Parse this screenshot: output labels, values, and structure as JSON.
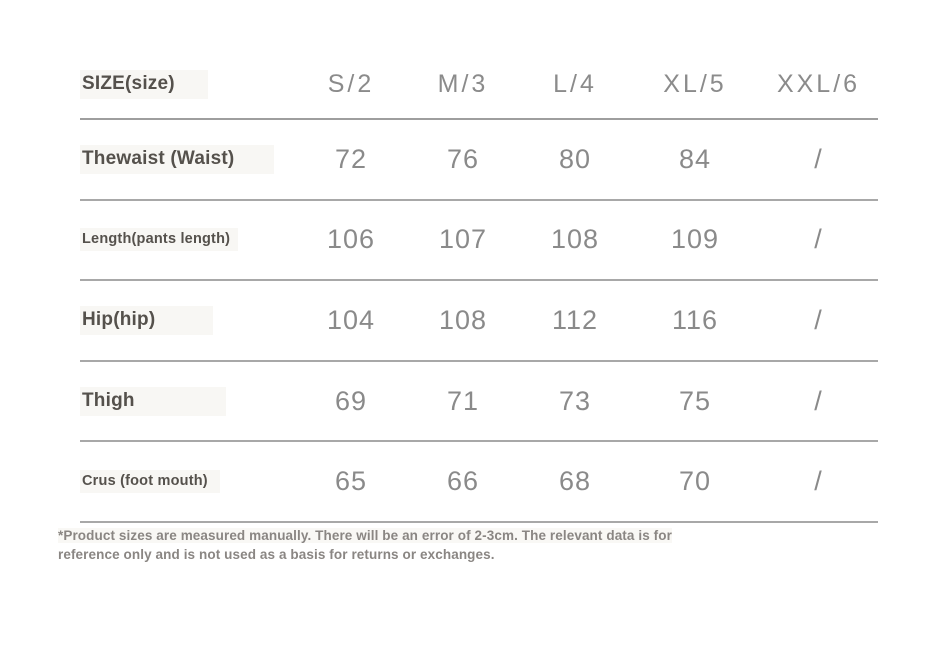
{
  "table": {
    "header": {
      "label": "SIZE(size)",
      "sizes": [
        "S/2",
        "M/3",
        "L/4",
        "XL/5",
        "XXL/6"
      ]
    },
    "rows": [
      {
        "label": "Thewaist (Waist)",
        "values": [
          "72",
          "76",
          "80",
          "84",
          "/"
        ]
      },
      {
        "label": "Length(pants length)",
        "values": [
          "106",
          "107",
          "108",
          "109",
          "/"
        ]
      },
      {
        "label": "Hip(hip)",
        "values": [
          "104",
          "108",
          "112",
          "116",
          "/"
        ]
      },
      {
        "label": "Thigh",
        "values": [
          "69",
          "71",
          "73",
          "75",
          "/"
        ]
      },
      {
        "label": "Crus (foot mouth)",
        "values": [
          "65",
          "66",
          "68",
          "70",
          "/"
        ]
      }
    ]
  },
  "footnote": {
    "line1": "*Product sizes are measured manually. There will be an error of 2-3cm. The relevant data is for",
    "line2": "reference only and is not used as a basis for returns or exchanges."
  },
  "colors": {
    "label_text": "#55514c",
    "value_text": "#8a8a8a",
    "rule_line": "#a8a8a8",
    "footnote_text": "#8a8683",
    "label_highlight": "#f8f7f4",
    "background": "#ffffff"
  }
}
